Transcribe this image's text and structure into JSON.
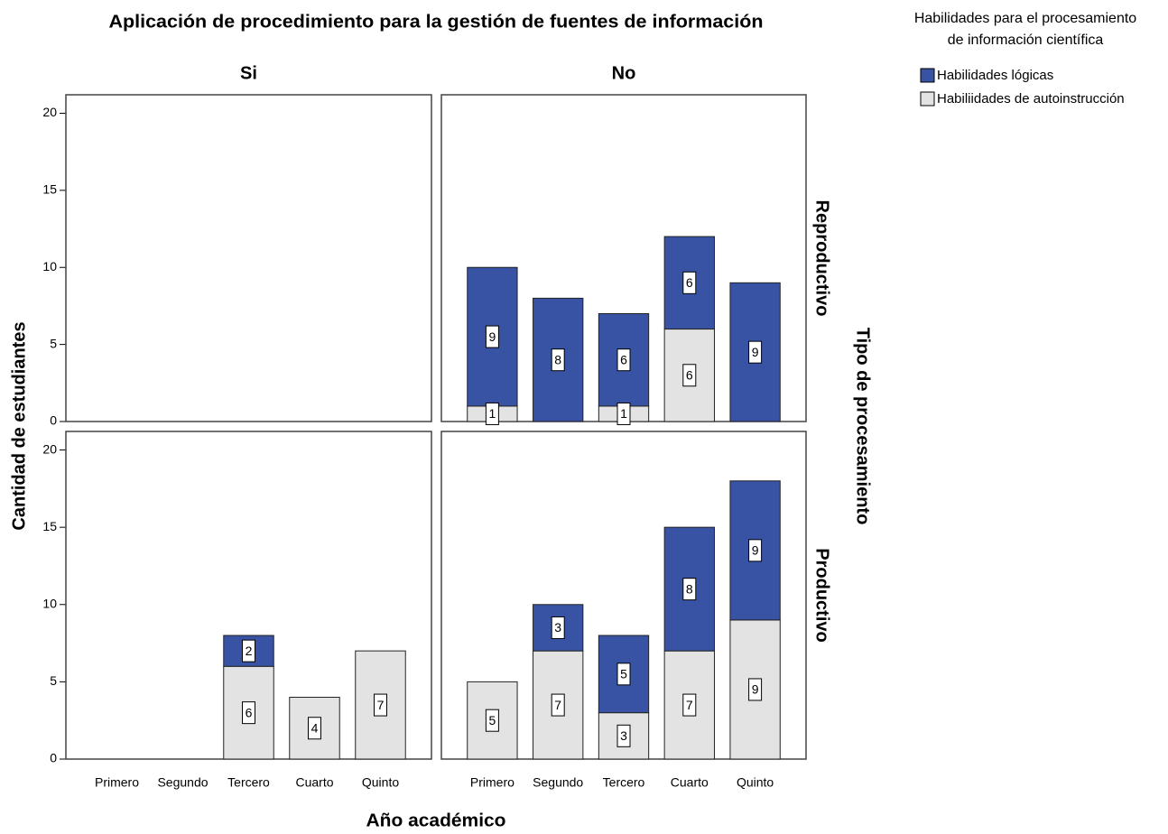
{
  "chart_data": {
    "type": "bar",
    "stacked": true,
    "title": "Aplicación de procedimiento para la gestión de fuentes de información",
    "x_label": "Año académico",
    "y_label": "Cantidad de estudiantes",
    "row_title": "Tipo de procesamiento",
    "legend_title": [
      "Habilidades para el procesamiento",
      "de información científica"
    ],
    "legend_position": "top-right",
    "categories": [
      "Primero",
      "Segundo",
      "Tercero",
      "Cuarto",
      "Quinto"
    ],
    "columns": [
      "Si",
      "No"
    ],
    "series": [
      {
        "name": "Habilidades lógicas",
        "color": "#3953a4"
      },
      {
        "name": "Habiliidades de autoinstrucción",
        "color": "#e3e3e3"
      }
    ],
    "rows": [
      {
        "label": "Reproductivo",
        "cells": [
          [
            [
              null,
              null,
              null,
              null,
              null
            ],
            [
              null,
              null,
              null,
              null,
              null
            ]
          ],
          [
            [
              9,
              8,
              6,
              6,
              9
            ],
            [
              1,
              null,
              1,
              6,
              null
            ]
          ]
        ]
      },
      {
        "label": "Productivo",
        "cells": [
          [
            [
              null,
              null,
              2,
              null,
              null
            ],
            [
              null,
              null,
              6,
              4,
              7
            ]
          ],
          [
            [
              null,
              3,
              5,
              8,
              9
            ],
            [
              5,
              7,
              3,
              7,
              9
            ]
          ]
        ]
      }
    ],
    "ylim": [
      0,
      21.2
    ],
    "yticks": [
      0,
      5,
      10,
      15,
      20
    ]
  }
}
